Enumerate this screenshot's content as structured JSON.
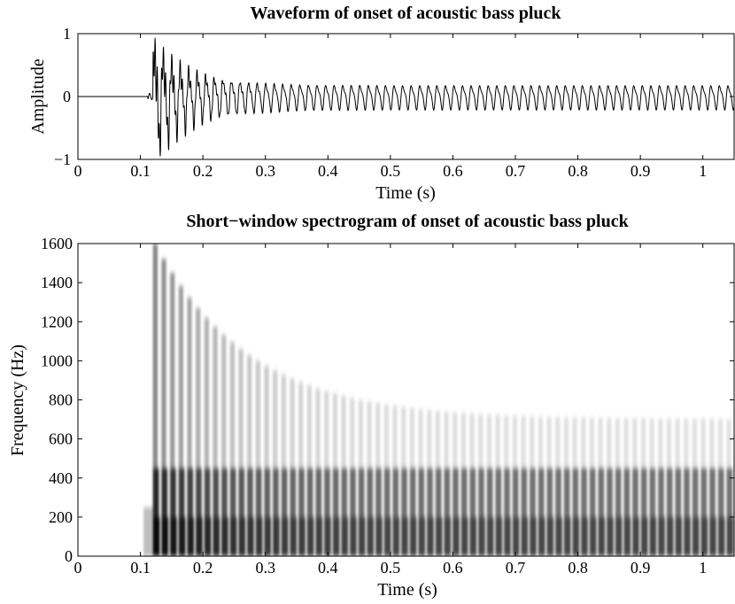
{
  "chart_data": [
    {
      "type": "line",
      "title": "Waveform of onset of acoustic bass pluck",
      "xlabel": "Time (s)",
      "ylabel": "Amplitude",
      "xlim": [
        0,
        1.05
      ],
      "ylim": [
        -1,
        1
      ],
      "xticks": [
        "0",
        "0.1",
        "0.2",
        "0.3",
        "0.4",
        "0.5",
        "0.6",
        "0.7",
        "0.8",
        "0.9",
        "1"
      ],
      "yticks": [
        "−1",
        "0",
        "1"
      ],
      "grid": false,
      "onset_time": 0.12,
      "peak_amplitude_early": [
        0.75,
        -0.9
      ],
      "oscillation_period": 0.0137,
      "late_amplitude_range": [
        -0.2,
        0.2
      ],
      "line_color": "#000000"
    },
    {
      "type": "heatmap",
      "title": "Short−window spectrogram of onset of acoustic bass pluck",
      "xlabel": "Time (s)",
      "ylabel": "Frequency (Hz)",
      "xlim": [
        0,
        1.05
      ],
      "ylim": [
        0,
        1600
      ],
      "xticks": [
        "0",
        "0.1",
        "0.2",
        "0.3",
        "0.4",
        "0.5",
        "0.6",
        "0.7",
        "0.8",
        "0.9",
        "1"
      ],
      "yticks": [
        "0",
        "200",
        "400",
        "600",
        "800",
        "1000",
        "1200",
        "1400",
        "1600"
      ],
      "grid": false,
      "onset_time": 0.12,
      "colormap": "grayscale (darker = more energy)",
      "energy_bands_hz": {
        "strong_fundamental": [
          0,
          450
        ],
        "upper_partials_decay_from": 1600,
        "upper_extent_at_end": 700
      },
      "band_color": "#000000"
    }
  ]
}
